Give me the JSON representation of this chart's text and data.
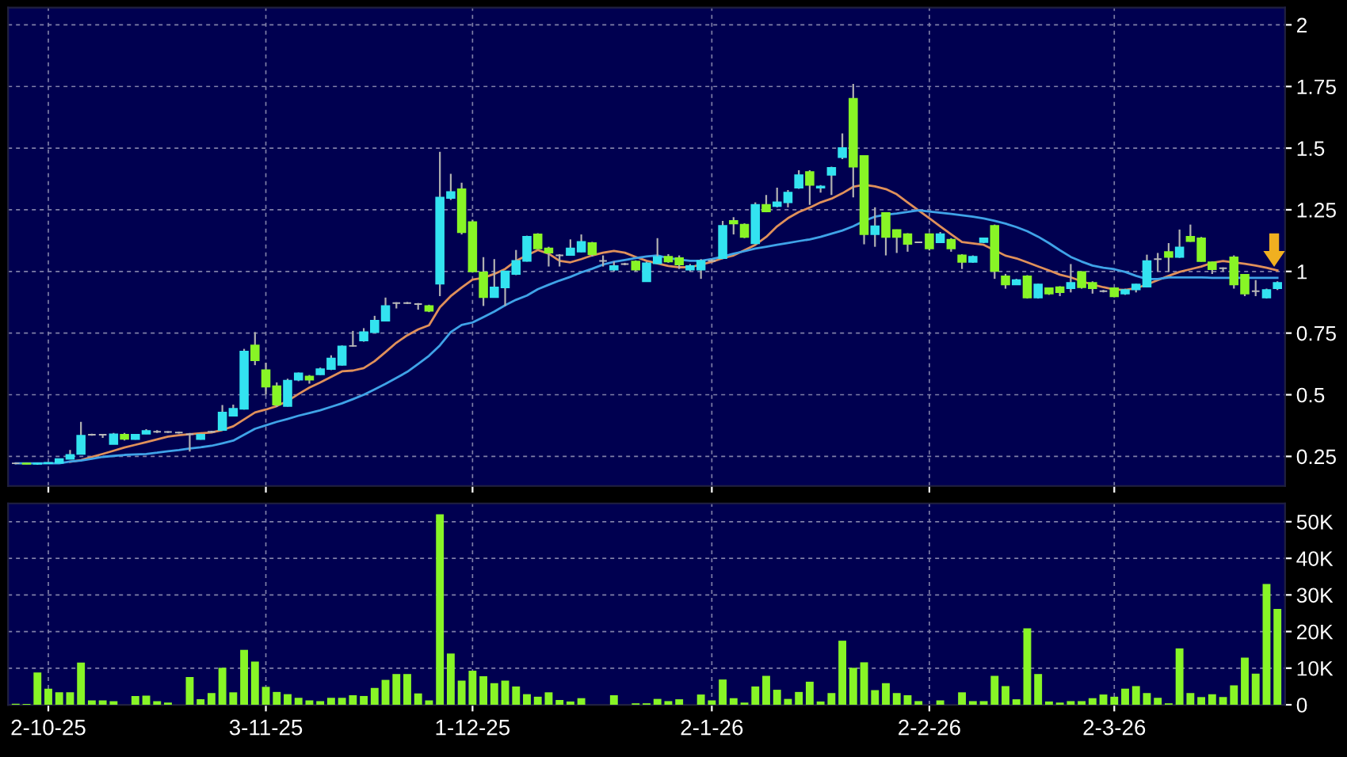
{
  "chart_data": [
    {
      "type": "candlestick",
      "categories": [
        null,
        null,
        null,
        null,
        null,
        null,
        null,
        null,
        null,
        null,
        null,
        null,
        null,
        null,
        null,
        null,
        null,
        null,
        null,
        null,
        null,
        null,
        null,
        null,
        null,
        null,
        null,
        null,
        null,
        null,
        null,
        null,
        null,
        null,
        null,
        null,
        null,
        null,
        null,
        null,
        null,
        null,
        null,
        null,
        null,
        null,
        null,
        null,
        null,
        null,
        null,
        null,
        null,
        null,
        null,
        null,
        null,
        null,
        null,
        null,
        null,
        null,
        null,
        null,
        null,
        null,
        null,
        null,
        null,
        null,
        null,
        null,
        null,
        null,
        null,
        null,
        null,
        null,
        null,
        null,
        null,
        null,
        null,
        null,
        null,
        null,
        null,
        null,
        null,
        null,
        null,
        null,
        null,
        null,
        null,
        null,
        null,
        null,
        null,
        null,
        null,
        null,
        null,
        null,
        null,
        null,
        null,
        null,
        null,
        null,
        null,
        null,
        null,
        null,
        null,
        null,
        null
      ],
      "ohlc": [
        [
          0.222,
          0.225,
          0.218,
          0.222
        ],
        [
          0.222,
          0.224,
          0.218,
          0.22
        ],
        [
          0.22,
          0.224,
          0.216,
          0.222
        ],
        [
          0.222,
          0.226,
          0.22,
          0.224
        ],
        [
          0.224,
          0.24,
          0.222,
          0.239
        ],
        [
          0.24,
          0.276,
          0.238,
          0.256
        ],
        [
          0.26,
          0.39,
          0.26,
          0.334
        ],
        [
          0.338,
          0.342,
          0.334,
          0.338
        ],
        [
          0.338,
          0.34,
          0.325,
          0.338
        ],
        [
          0.3,
          0.345,
          0.3,
          0.34
        ],
        [
          0.338,
          0.345,
          0.315,
          0.321
        ],
        [
          0.32,
          0.34,
          0.318,
          0.338
        ],
        [
          0.342,
          0.36,
          0.34,
          0.353
        ],
        [
          0.35,
          0.356,
          0.345,
          0.35
        ],
        [
          0.349,
          0.352,
          0.345,
          0.349
        ],
        [
          0.347,
          0.35,
          0.343,
          0.347
        ],
        [
          0.34,
          0.345,
          0.27,
          0.34
        ],
        [
          0.32,
          0.342,
          0.318,
          0.338
        ],
        [
          0.35,
          0.354,
          0.346,
          0.35
        ],
        [
          0.357,
          0.458,
          0.355,
          0.428
        ],
        [
          0.415,
          0.46,
          0.413,
          0.443
        ],
        [
          0.443,
          0.686,
          0.44,
          0.675
        ],
        [
          0.7,
          0.754,
          0.62,
          0.64
        ],
        [
          0.6,
          0.63,
          0.5,
          0.533
        ],
        [
          0.535,
          0.55,
          0.45,
          0.46
        ],
        [
          0.454,
          0.565,
          0.452,
          0.557
        ],
        [
          0.561,
          0.59,
          0.555,
          0.587
        ],
        [
          0.574,
          0.58,
          0.545,
          0.561
        ],
        [
          0.583,
          0.61,
          0.58,
          0.604
        ],
        [
          0.604,
          0.66,
          0.6,
          0.647
        ],
        [
          0.621,
          0.7,
          0.618,
          0.696
        ],
        [
          0.698,
          0.759,
          0.695,
          0.698
        ],
        [
          0.72,
          0.77,
          0.715,
          0.754
        ],
        [
          0.754,
          0.82,
          0.75,
          0.8
        ],
        [
          0.8,
          0.894,
          0.8,
          0.86
        ],
        [
          0.872,
          0.875,
          0.85,
          0.872
        ],
        [
          0.872,
          0.876,
          0.868,
          0.872
        ],
        [
          0.868,
          0.872,
          0.845,
          0.868
        ],
        [
          0.86,
          0.865,
          0.835,
          0.84
        ],
        [
          0.95,
          1.485,
          0.9,
          1.3
        ],
        [
          1.298,
          1.396,
          1.29,
          1.322
        ],
        [
          1.333,
          1.36,
          1.15,
          1.159
        ],
        [
          1.2,
          1.21,
          0.995,
          1.0
        ],
        [
          0.996,
          1.058,
          0.86,
          0.896
        ],
        [
          0.896,
          1.05,
          0.894,
          0.935
        ],
        [
          0.935,
          1.0,
          0.86,
          1.0
        ],
        [
          0.99,
          1.087,
          0.985,
          1.043
        ],
        [
          1.043,
          1.145,
          1.04,
          1.141
        ],
        [
          1.15,
          1.155,
          1.09,
          1.093
        ],
        [
          1.093,
          1.1,
          1.02,
          1.076
        ],
        [
          1.065,
          1.07,
          1.02,
          1.065
        ],
        [
          1.067,
          1.13,
          1.065,
          1.093
        ],
        [
          1.08,
          1.15,
          1.078,
          1.12
        ],
        [
          1.115,
          1.12,
          1.06,
          1.07
        ],
        [
          1.043,
          1.065,
          1.02,
          1.043
        ],
        [
          1.007,
          1.04,
          1.0,
          1.022
        ],
        [
          1.03,
          1.035,
          1.025,
          1.03
        ],
        [
          1.04,
          1.045,
          1.0,
          1.007
        ],
        [
          0.96,
          1.04,
          0.958,
          1.033
        ],
        [
          1.033,
          1.135,
          1.03,
          1.059
        ],
        [
          1.06,
          1.07,
          1.035,
          1.04
        ],
        [
          1.054,
          1.065,
          1.01,
          1.028
        ],
        [
          1.007,
          1.03,
          1.0,
          1.022
        ],
        [
          1.007,
          1.05,
          0.97,
          1.043
        ],
        [
          1.043,
          1.05,
          1.04,
          1.043
        ],
        [
          1.054,
          1.205,
          1.05,
          1.185
        ],
        [
          1.205,
          1.22,
          1.15,
          1.194
        ],
        [
          1.19,
          1.195,
          1.135,
          1.14
        ],
        [
          1.114,
          1.28,
          1.11,
          1.27
        ],
        [
          1.27,
          1.31,
          1.24,
          1.243
        ],
        [
          1.265,
          1.34,
          1.26,
          1.28
        ],
        [
          1.28,
          1.33,
          1.26,
          1.32
        ],
        [
          1.34,
          1.41,
          1.335,
          1.39
        ],
        [
          1.403,
          1.41,
          1.27,
          1.351
        ],
        [
          1.34,
          1.35,
          1.32,
          1.345
        ],
        [
          1.392,
          1.425,
          1.31,
          1.42
        ],
        [
          1.463,
          1.56,
          1.455,
          1.5
        ],
        [
          1.7,
          1.76,
          1.3,
          1.425
        ],
        [
          1.468,
          1.47,
          1.11,
          1.151
        ],
        [
          1.151,
          1.26,
          1.1,
          1.183
        ],
        [
          1.237,
          1.24,
          1.065,
          1.14
        ],
        [
          1.168,
          1.17,
          1.075,
          1.14
        ],
        [
          1.151,
          1.155,
          1.08,
          1.112
        ],
        [
          1.118,
          1.12,
          1.115,
          1.118
        ],
        [
          1.151,
          1.155,
          1.085,
          1.093
        ],
        [
          1.118,
          1.16,
          1.115,
          1.151
        ],
        [
          1.129,
          1.135,
          1.08,
          1.093
        ],
        [
          1.065,
          1.07,
          1.01,
          1.039
        ],
        [
          1.039,
          1.065,
          1.035,
          1.06
        ],
        [
          1.119,
          1.135,
          1.115,
          1.134
        ],
        [
          1.185,
          1.19,
          0.97,
          1.002
        ],
        [
          0.98,
          0.99,
          0.93,
          0.947
        ],
        [
          0.947,
          0.97,
          0.945,
          0.965
        ],
        [
          0.98,
          0.985,
          0.89,
          0.894
        ],
        [
          0.894,
          0.95,
          0.89,
          0.947
        ],
        [
          0.932,
          0.935,
          0.905,
          0.91
        ],
        [
          0.936,
          0.94,
          0.9,
          0.916
        ],
        [
          0.932,
          1.03,
          0.915,
          0.954
        ],
        [
          0.998,
          1.0,
          0.93,
          0.936
        ],
        [
          0.954,
          0.96,
          0.91,
          0.932
        ],
        [
          0.92,
          0.925,
          0.915,
          0.92
        ],
        [
          0.932,
          0.935,
          0.895,
          0.899
        ],
        [
          0.91,
          0.93,
          0.905,
          0.925
        ],
        [
          0.927,
          0.95,
          0.915,
          0.947
        ],
        [
          0.938,
          1.068,
          0.935,
          1.042
        ],
        [
          1.05,
          1.075,
          1.0,
          1.05
        ],
        [
          1.079,
          1.115,
          0.998,
          1.059
        ],
        [
          1.059,
          1.17,
          1.055,
          1.097
        ],
        [
          1.141,
          1.19,
          1.12,
          1.123
        ],
        [
          1.134,
          1.14,
          1.04,
          1.042
        ],
        [
          1.037,
          1.04,
          0.99,
          1.009
        ],
        [
          1.013,
          1.016,
          1.0,
          1.013
        ],
        [
          1.057,
          1.065,
          0.93,
          0.947
        ],
        [
          0.987,
          0.99,
          0.9,
          0.91
        ],
        [
          0.92,
          0.965,
          0.9,
          0.92
        ],
        [
          0.894,
          0.93,
          0.89,
          0.925
        ],
        [
          0.932,
          0.96,
          0.925,
          0.954
        ]
      ],
      "colors": [
        "#b8b8b8",
        "#88f526",
        "#33e3f0",
        "#33e3f0",
        "#33e3f0",
        "#33e3f0",
        "#33e3f0",
        "#b8b8b8",
        "#b8b8b8",
        "#33e3f0",
        "#88f526",
        "#33e3f0",
        "#33e3f0",
        "#b8b8b8",
        "#b8b8b8",
        "#b8b8b8",
        "#b8b8b8",
        "#33e3f0",
        "#b8b8b8",
        "#33e3f0",
        "#33e3f0",
        "#33e3f0",
        "#88f526",
        "#88f526",
        "#88f526",
        "#33e3f0",
        "#33e3f0",
        "#88f526",
        "#33e3f0",
        "#33e3f0",
        "#33e3f0",
        "#b8b8b8",
        "#33e3f0",
        "#33e3f0",
        "#33e3f0",
        "#b8b8b8",
        "#b8b8b8",
        "#b8b8b8",
        "#88f526",
        "#33e3f0",
        "#33e3f0",
        "#88f526",
        "#88f526",
        "#88f526",
        "#33e3f0",
        "#33e3f0",
        "#33e3f0",
        "#33e3f0",
        "#88f526",
        "#88f526",
        "#b8b8b8",
        "#33e3f0",
        "#33e3f0",
        "#88f526",
        "#b8b8b8",
        "#33e3f0",
        "#b8b8b8",
        "#88f526",
        "#33e3f0",
        "#33e3f0",
        "#88f526",
        "#88f526",
        "#33e3f0",
        "#33e3f0",
        "#b8b8b8",
        "#33e3f0",
        "#88f526",
        "#88f526",
        "#33e3f0",
        "#88f526",
        "#33e3f0",
        "#33e3f0",
        "#33e3f0",
        "#88f526",
        "#33e3f0",
        "#33e3f0",
        "#33e3f0",
        "#88f526",
        "#88f526",
        "#33e3f0",
        "#88f526",
        "#88f526",
        "#88f526",
        "#b8b8b8",
        "#88f526",
        "#33e3f0",
        "#88f526",
        "#88f526",
        "#33e3f0",
        "#33e3f0",
        "#88f526",
        "#88f526",
        "#33e3f0",
        "#88f526",
        "#33e3f0",
        "#88f526",
        "#88f526",
        "#33e3f0",
        "#88f526",
        "#88f526",
        "#b8b8b8",
        "#88f526",
        "#33e3f0",
        "#33e3f0",
        "#33e3f0",
        "#b8b8b8",
        "#88f526",
        "#33e3f0",
        "#88f526",
        "#88f526",
        "#88f526",
        "#b8b8b8",
        "#88f526",
        "#88f526",
        "#b8b8b8",
        "#33e3f0",
        "#33e3f0"
      ],
      "series": [
        {
          "type": "line",
          "color": "#e0905a",
          "values": [
            null,
            null,
            null,
            null,
            null,
            0.228,
            0.235,
            0.248,
            0.26,
            0.273,
            0.286,
            0.297,
            0.308,
            0.319,
            0.33,
            0.336,
            0.34,
            0.344,
            0.347,
            0.357,
            0.372,
            0.4,
            0.428,
            0.44,
            0.454,
            0.475,
            0.503,
            0.529,
            0.55,
            0.572,
            0.595,
            0.598,
            0.608,
            0.636,
            0.673,
            0.711,
            0.741,
            0.765,
            0.782,
            0.855,
            0.9,
            0.935,
            0.967,
            0.974,
            0.99,
            1.01,
            1.043,
            1.065,
            1.087,
            1.072,
            1.043,
            1.037,
            1.05,
            1.065,
            1.076,
            1.083,
            1.076,
            1.059,
            1.043,
            1.033,
            1.022,
            1.017,
            1.017,
            1.028,
            1.039,
            1.054,
            1.065,
            1.086,
            1.108,
            1.14,
            1.183,
            1.216,
            1.241,
            1.259,
            1.28,
            1.295,
            1.317,
            1.343,
            1.351,
            1.345,
            1.334,
            1.313,
            1.28,
            1.248,
            1.216,
            1.183,
            1.151,
            1.119,
            1.114,
            1.108,
            1.086,
            1.064,
            1.053,
            1.037,
            1.02,
            1.004,
            0.987,
            0.976,
            0.96,
            0.947,
            0.936,
            0.927,
            0.925,
            0.932,
            0.947,
            0.965,
            0.982,
            0.998,
            1.009,
            1.02,
            1.035,
            1.042,
            1.037,
            1.031,
            1.024,
            1.015,
            1.004
          ]
        },
        {
          "type": "line",
          "color": "#3fa3e8",
          "values": [
            0.222,
            0.222,
            0.222,
            0.222,
            0.222,
            0.229,
            0.233,
            0.24,
            0.248,
            0.252,
            0.256,
            0.258,
            0.26,
            0.265,
            0.271,
            0.276,
            0.282,
            0.287,
            0.293,
            0.303,
            0.314,
            0.338,
            0.362,
            0.376,
            0.39,
            0.402,
            0.415,
            0.426,
            0.437,
            0.451,
            0.465,
            0.482,
            0.5,
            0.522,
            0.544,
            0.568,
            0.593,
            0.625,
            0.658,
            0.7,
            0.754,
            0.783,
            0.793,
            0.815,
            0.837,
            0.863,
            0.885,
            0.902,
            0.928,
            0.946,
            0.963,
            0.978,
            0.996,
            1.011,
            1.028,
            1.039,
            1.046,
            1.054,
            1.061,
            1.065,
            1.054,
            1.048,
            1.043,
            1.043,
            1.05,
            1.06,
            1.072,
            1.082,
            1.093,
            1.1,
            1.108,
            1.115,
            1.123,
            1.13,
            1.14,
            1.153,
            1.166,
            1.183,
            1.205,
            1.222,
            1.23,
            1.235,
            1.241,
            1.248,
            1.243,
            1.238,
            1.233,
            1.228,
            1.222,
            1.215,
            1.205,
            1.194,
            1.18,
            1.163,
            1.141,
            1.115,
            1.086,
            1.059,
            1.04,
            1.024,
            1.015,
            1.009,
            0.998,
            0.982,
            0.969,
            0.969,
            0.976,
            0.976,
            0.976,
            0.976,
            0.974,
            0.974,
            0.974,
            0.974,
            0.974,
            0.974,
            0.974
          ]
        }
      ],
      "ylim": [
        0.13,
        2.07
      ],
      "yticks": [
        0.25,
        0.5,
        0.75,
        1,
        1.25,
        1.5,
        1.75,
        2
      ],
      "grid": true
    },
    {
      "type": "bar",
      "categories": [
        null,
        null,
        null,
        "2-10-25",
        null,
        null,
        null,
        null,
        null,
        null,
        null,
        null,
        null,
        null,
        null,
        null,
        null,
        null,
        null,
        null,
        null,
        null,
        null,
        "3-11-25",
        null,
        null,
        null,
        null,
        null,
        null,
        null,
        null,
        null,
        null,
        null,
        null,
        null,
        null,
        null,
        null,
        null,
        null,
        "1-12-25",
        null,
        null,
        null,
        null,
        null,
        null,
        null,
        null,
        null,
        null,
        null,
        null,
        null,
        null,
        null,
        null,
        null,
        null,
        null,
        null,
        null,
        "2-1-26",
        null,
        null,
        null,
        null,
        null,
        null,
        null,
        null,
        null,
        null,
        null,
        null,
        null,
        null,
        null,
        null,
        null,
        null,
        null,
        "2-2-26",
        null,
        null,
        null,
        null,
        null,
        null,
        null,
        null,
        null,
        null,
        null,
        null,
        null,
        null,
        null,
        null,
        "2-3-26",
        null,
        null,
        null,
        null,
        null,
        null,
        null,
        null,
        null,
        null,
        null,
        null,
        null,
        null,
        null
      ],
      "values": [
        300,
        200,
        8800,
        4400,
        3400,
        3400,
        11500,
        1200,
        1200,
        1000,
        null,
        2400,
        2500,
        1000,
        600,
        null,
        7600,
        1500,
        3200,
        10100,
        3400,
        15000,
        11800,
        4900,
        3500,
        2900,
        1900,
        1200,
        1000,
        1900,
        1900,
        2600,
        2400,
        4600,
        6800,
        8400,
        8400,
        3100,
        1200,
        52000,
        14000,
        6600,
        9300,
        7800,
        5900,
        6600,
        5000,
        2900,
        2200,
        3400,
        1300,
        900,
        1800,
        null,
        null,
        2600,
        0,
        400,
        400,
        1600,
        1000,
        1500,
        0,
        2800,
        1200,
        6900,
        1800,
        600,
        5000,
        7900,
        4100,
        1600,
        3500,
        6300,
        900,
        3200,
        17500,
        10100,
        11600,
        4000,
        5900,
        3200,
        2600,
        1000,
        0,
        1200,
        0,
        3400,
        1000,
        1000,
        7900,
        5100,
        1500,
        20900,
        8400,
        900,
        600,
        1000,
        1000,
        1800,
        2800,
        2200,
        4400,
        5100,
        3200,
        1900,
        400,
        15400,
        3200,
        2100,
        2900,
        2100,
        5300,
        12900,
        8500,
        33000,
        26200
      ],
      "color": "#88f526",
      "ylim": [
        0,
        55000
      ],
      "yticks": [
        0,
        {
          "value": 10000,
          "label": "10K"
        },
        {
          "value": 20000,
          "label": "20K"
        },
        {
          "value": 30000,
          "label": "30K"
        },
        {
          "value": 40000,
          "label": "40K"
        },
        {
          "value": 50000,
          "label": "50K"
        }
      ],
      "grid": true
    }
  ]
}
